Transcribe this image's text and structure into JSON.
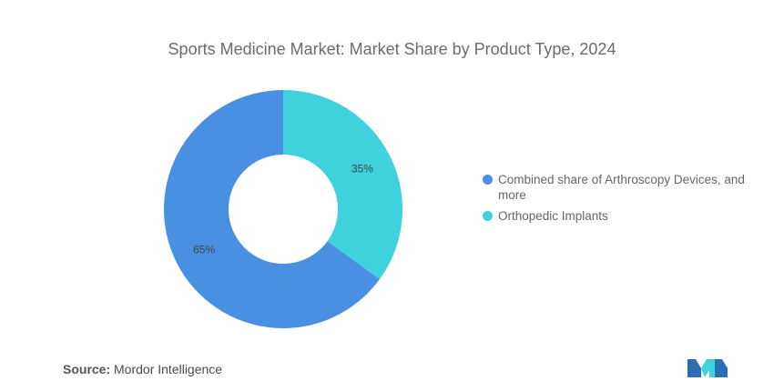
{
  "chart_data": {
    "type": "pie",
    "title": "Sports Medicine Market: Market Share by Product Type, 2024",
    "donut": true,
    "categories": [
      "Combined share of Arthroscopy Devices, and more",
      "Orthopedic Implants"
    ],
    "values": [
      65,
      35
    ],
    "value_labels": [
      "65%",
      "35%"
    ],
    "colors": [
      "#4a90e2",
      "#3fd2dc"
    ],
    "legend_position": "right"
  },
  "source": {
    "label": "Source:",
    "text": "Mordor Intelligence"
  },
  "colors": {
    "logo": "#2a6fb5",
    "logo_accent": "#3fd2dc"
  }
}
